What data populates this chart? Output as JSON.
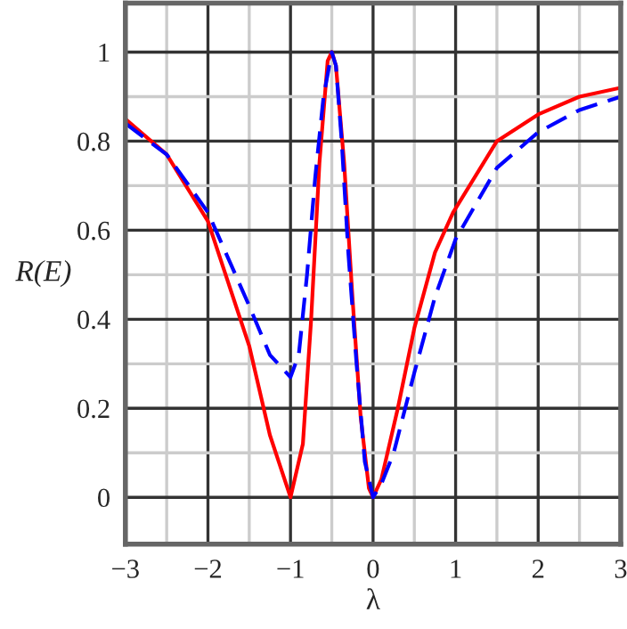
{
  "chart_data": {
    "type": "line",
    "xlabel": "λ",
    "ylabel": "R(E)",
    "xlim": [
      -3,
      3
    ],
    "ylim": [
      -0.105,
      1.11
    ],
    "xticks": [
      {
        "value": -3,
        "label": "−3"
      },
      {
        "value": -2.5,
        "label": null
      },
      {
        "value": -2,
        "label": "−2"
      },
      {
        "value": -1.5,
        "label": null
      },
      {
        "value": -1,
        "label": "−1"
      },
      {
        "value": -0.5,
        "label": null
      },
      0,
      {
        "value": 0.5,
        "label": null
      },
      1,
      {
        "value": 1.5,
        "label": null
      },
      2,
      {
        "value": 2.5,
        "label": null
      },
      3
    ],
    "yticks": [
      0,
      {
        "value": 0.1,
        "label": null
      },
      0.2,
      {
        "value": 0.3,
        "label": null
      },
      0.4,
      {
        "value": 0.5,
        "label": null
      },
      0.6,
      {
        "value": 0.7,
        "label": null
      },
      0.8,
      {
        "value": 0.9,
        "label": null
      },
      1
    ],
    "grid": true,
    "legend": false,
    "series": [
      {
        "color": "#ff0000",
        "line_style": "solid",
        "x": [
          -3,
          -2.5,
          -2,
          -1.5,
          -1.25,
          -1,
          -0.85,
          -0.75,
          -0.65,
          -0.55,
          -0.5,
          -0.45,
          -0.35,
          -0.25,
          -0.15,
          -0.05,
          0,
          0.1,
          0.3,
          0.5,
          0.75,
          0.97,
          1.5,
          2,
          2.5,
          3
        ],
        "values": [
          0.85,
          0.77,
          0.62,
          0.34,
          0.14,
          0,
          0.12,
          0.4,
          0.75,
          0.98,
          1.0,
          0.97,
          0.75,
          0.45,
          0.18,
          0.02,
          0,
          0.04,
          0.2,
          0.38,
          0.55,
          0.64,
          0.8,
          0.86,
          0.9,
          0.92
        ]
      },
      {
        "color": "#0000ff",
        "line_style": "dashed",
        "x": [
          -3,
          -2.5,
          -2,
          -1.5,
          -1.25,
          -1,
          -0.9,
          -0.8,
          -0.7,
          -0.6,
          -0.5,
          -0.45,
          -0.38,
          -0.3,
          -0.2,
          -0.1,
          0,
          0.1,
          0.25,
          0.5,
          0.75,
          1,
          1.5,
          2,
          2.5,
          3
        ],
        "values": [
          0.84,
          0.77,
          0.64,
          0.43,
          0.32,
          0.27,
          0.32,
          0.5,
          0.72,
          0.9,
          1.0,
          0.97,
          0.8,
          0.55,
          0.3,
          0.08,
          0,
          0.03,
          0.1,
          0.28,
          0.45,
          0.58,
          0.74,
          0.82,
          0.87,
          0.9
        ]
      }
    ]
  }
}
